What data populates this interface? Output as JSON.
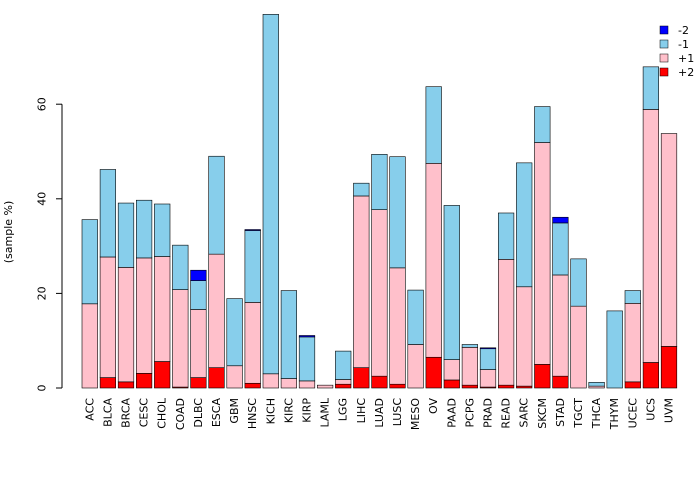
{
  "chart_data": {
    "type": "bar",
    "stacked": true,
    "title": "",
    "xlabel": "",
    "ylabel": "(sample %)",
    "ylim": [
      0,
      80
    ],
    "yticks": [
      0,
      20,
      40,
      60
    ],
    "legend_position": "top-right",
    "categories": [
      "ACC",
      "BLCA",
      "BRCA",
      "CESC",
      "CHOL",
      "COAD",
      "DLBC",
      "ESCA",
      "GBM",
      "HNSC",
      "KICH",
      "KIRC",
      "KIRP",
      "LAML",
      "LGG",
      "LIHC",
      "LUAD",
      "LUSC",
      "MESO",
      "OV",
      "PAAD",
      "PCPG",
      "PRAD",
      "READ",
      "SARC",
      "SKCM",
      "STAD",
      "TGCT",
      "THCA",
      "THYM",
      "UCEC",
      "UCS",
      "UVM"
    ],
    "series": [
      {
        "name": "+2",
        "color": "#ff0000",
        "values": [
          0,
          2.2,
          1.3,
          3.1,
          5.6,
          0.2,
          2.2,
          4.3,
          0,
          1.0,
          0,
          0,
          0,
          0,
          0.8,
          4.3,
          2.5,
          0.8,
          0,
          6.5,
          1.7,
          0.6,
          0.2,
          0.6,
          0.4,
          5.0,
          2.5,
          0,
          0,
          0,
          1.3,
          5.4,
          8.8
        ]
      },
      {
        "name": "+1",
        "color": "#ffc0cb",
        "values": [
          17.8,
          25.5,
          24.2,
          24.4,
          22.2,
          20.6,
          14.4,
          24.0,
          4.7,
          17.1,
          3.0,
          2.0,
          1.5,
          0.6,
          1.0,
          36.3,
          35.2,
          24.6,
          9.2,
          41.0,
          4.3,
          8.0,
          3.7,
          26.6,
          21.0,
          46.9,
          21.4,
          17.3,
          0.4,
          0,
          16.6,
          53.5,
          45.0
        ]
      },
      {
        "name": "-1",
        "color": "#87ceeb",
        "values": [
          17.8,
          18.5,
          13.6,
          12.2,
          11.1,
          9.4,
          6.1,
          20.7,
          14.2,
          15.2,
          76.0,
          18.6,
          9.3,
          0,
          6.0,
          2.7,
          11.7,
          23.5,
          11.5,
          16.2,
          32.6,
          0.6,
          4.4,
          9.8,
          26.2,
          7.6,
          11.0,
          10.0,
          0.8,
          16.3,
          2.7,
          9.0,
          0
        ]
      },
      {
        "name": "-2",
        "color": "#0000ff",
        "values": [
          0,
          0,
          0,
          0,
          0,
          0,
          2.2,
          0,
          0,
          0.2,
          0,
          0,
          0.3,
          0,
          0,
          0,
          0,
          0,
          0,
          0,
          0,
          0,
          0.2,
          0,
          0,
          0,
          1.2,
          0,
          0,
          0,
          0,
          0,
          0
        ]
      }
    ],
    "legend_order": [
      "-2",
      "-1",
      "+1",
      "+2"
    ]
  }
}
